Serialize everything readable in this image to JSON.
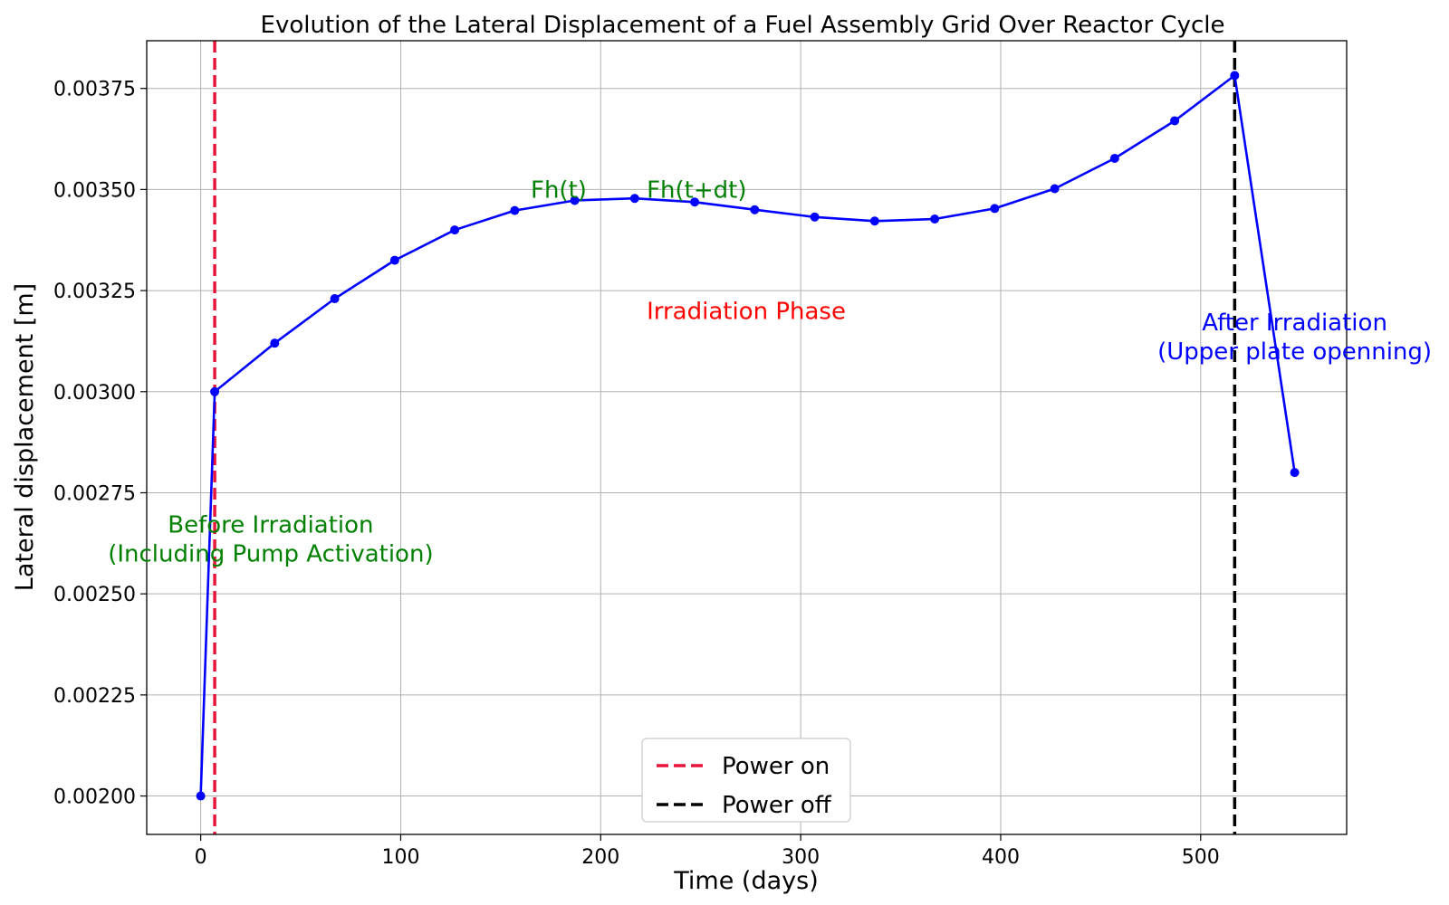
{
  "chart_data": {
    "type": "line",
    "title": "Evolution of the Lateral Displacement of a Fuel Assembly Grid Over Reactor Cycle",
    "xlabel": "Time (days)",
    "ylabel": "Lateral displacement [m]",
    "xlim": [
      -27,
      573
    ],
    "ylim": [
      0.001905,
      0.003868
    ],
    "grid": true,
    "xticks": [
      0,
      100,
      200,
      300,
      400,
      500
    ],
    "xtick_labels": [
      "0",
      "100",
      "200",
      "300",
      "400",
      "500"
    ],
    "yticks": [
      0.002,
      0.00225,
      0.0025,
      0.00275,
      0.003,
      0.00325,
      0.0035,
      0.00375
    ],
    "ytick_labels": [
      "0.00200",
      "0.00225",
      "0.00250",
      "0.00275",
      "0.00300",
      "0.00325",
      "0.00350",
      "0.00375"
    ],
    "series": [
      {
        "name": "Lateral displacement",
        "color": "#0000ff",
        "x": [
          0,
          7,
          37,
          67,
          97,
          127,
          157,
          187,
          217,
          247,
          277,
          307,
          337,
          367,
          397,
          427,
          457,
          487,
          517,
          547
        ],
        "y": [
          0.002,
          0.003,
          0.00312,
          0.00323,
          0.003325,
          0.0034,
          0.003448,
          0.003473,
          0.003478,
          0.003469,
          0.00345,
          0.003432,
          0.003422,
          0.003427,
          0.003453,
          0.003502,
          0.003577,
          0.00367,
          0.003782,
          0.0028
        ]
      }
    ],
    "vlines": [
      {
        "label": "Power on",
        "x": 7,
        "color": "#e8163c",
        "style": "dashed"
      },
      {
        "label": "Power off",
        "x": 517,
        "color": "#000000",
        "style": "dashed"
      }
    ],
    "legend": {
      "position": "bottom-center",
      "entries": [
        "Power on",
        "Power off"
      ]
    },
    "annotations": [
      {
        "lines": [
          "Fh(t)"
        ],
        "x": 165,
        "y": 0.0035,
        "anchor": "start",
        "color": "#008000"
      },
      {
        "lines": [
          "Fh(t+dt)"
        ],
        "x": 223,
        "y": 0.0035,
        "anchor": "start",
        "color": "#008000"
      },
      {
        "lines": [
          "Irradiation Phase"
        ],
        "x": 223,
        "y": 0.0032,
        "anchor": "start",
        "color": "#ff0000"
      },
      {
        "lines": [
          "Before Irradiation",
          "(Including Pump Activation)"
        ],
        "x": 35,
        "y": 0.0026,
        "anchor": "middle",
        "color": "#008000"
      },
      {
        "lines": [
          "After Irradiation",
          "(Upper plate openning)"
        ],
        "x": 547,
        "y": 0.0031,
        "anchor": "middle",
        "color": "#0000ff"
      }
    ]
  }
}
